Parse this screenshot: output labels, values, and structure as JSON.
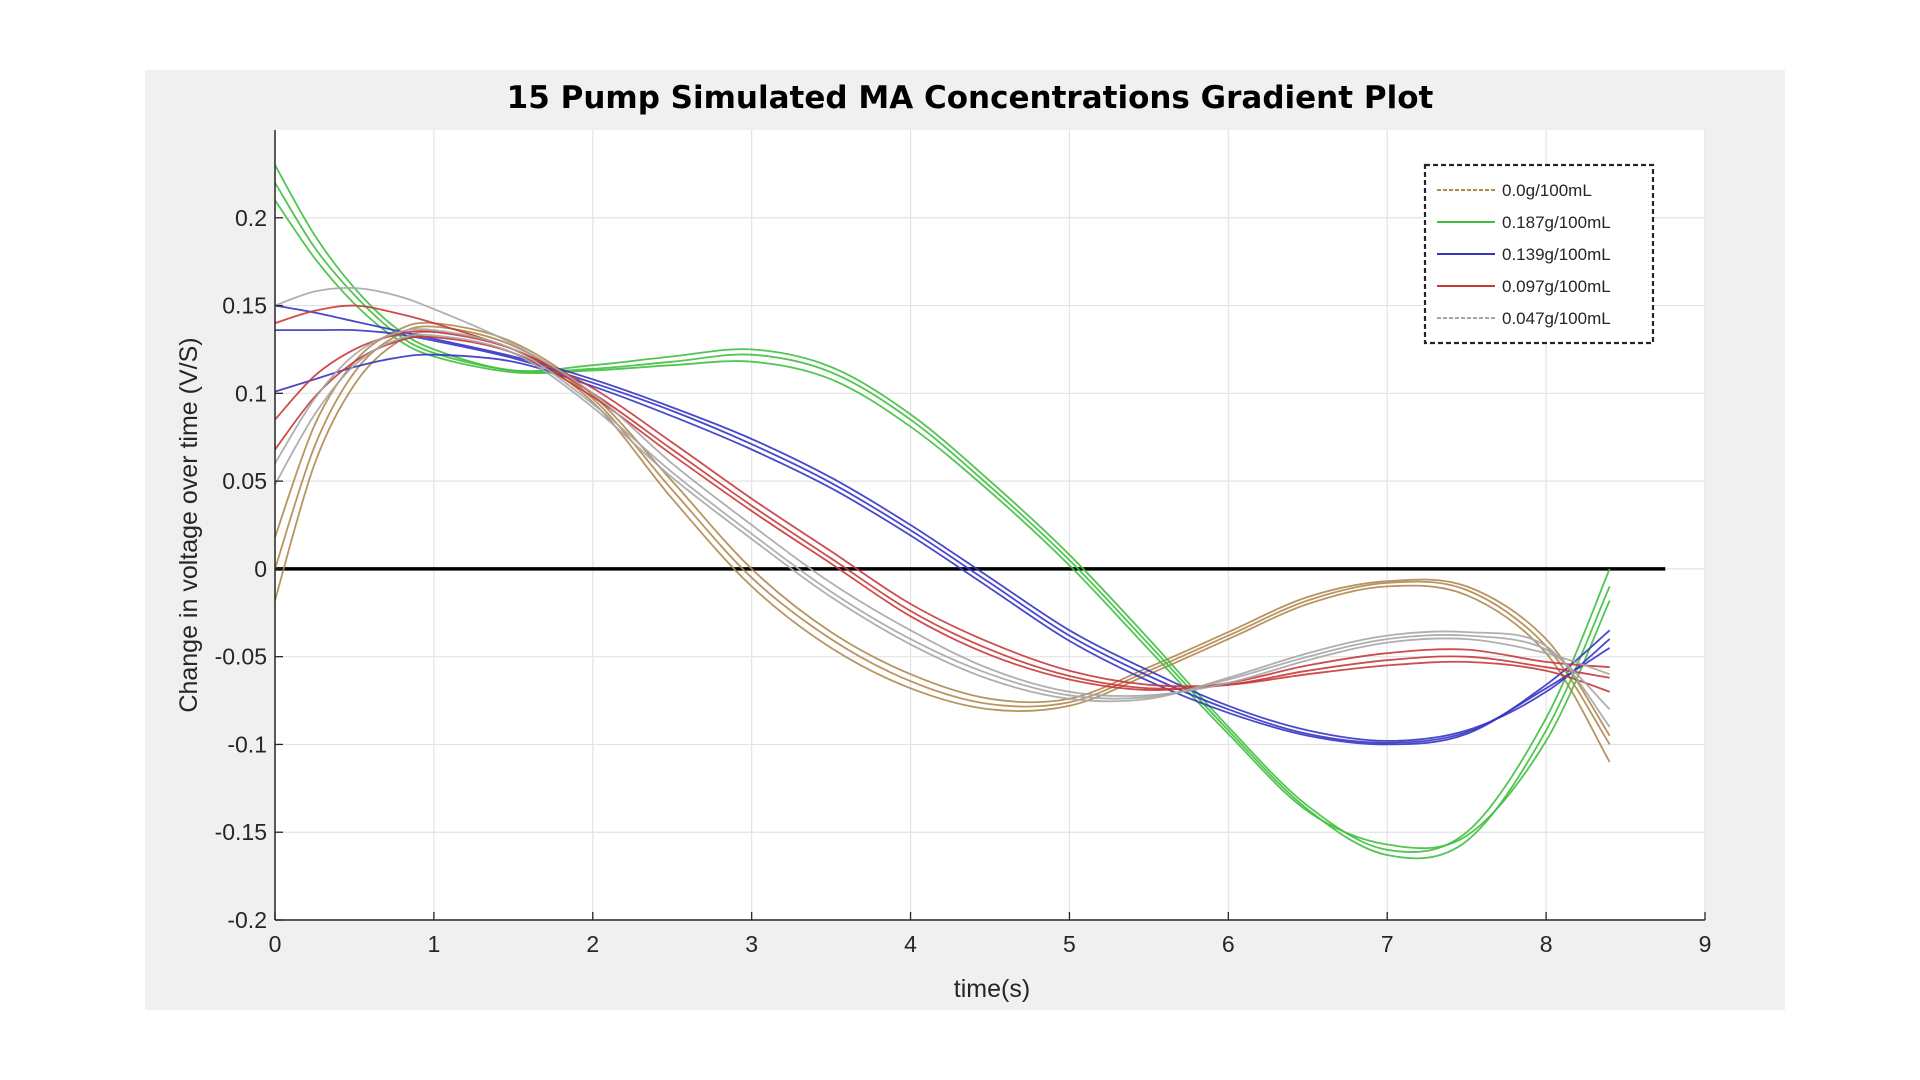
{
  "chart_data": {
    "type": "line",
    "title": "15 Pump Simulated MA Concentrations Gradient Plot",
    "xlabel": "time(s)",
    "ylabel": "Change in voltage over time (V/S)",
    "xlim": [
      0,
      9
    ],
    "ylim": [
      -0.2,
      0.25
    ],
    "x_ticks": [
      "0",
      "1",
      "2",
      "3",
      "4",
      "5",
      "6",
      "7",
      "8",
      "9"
    ],
    "y_ticks": [
      "-0.2",
      "-0.15",
      "-0.1",
      "-0.05",
      "0",
      "0.05",
      "0.1",
      "0.15",
      "0.2"
    ],
    "grid": true,
    "legend_position": "top-right",
    "reference_line": {
      "y": 0,
      "x_range": [
        0,
        8.75
      ],
      "color": "#000000"
    },
    "series": [
      {
        "name": "0.0g/100mL",
        "color": "#b08850",
        "style": "dashed",
        "x": [
          0,
          0.25,
          0.5,
          0.75,
          1,
          1.5,
          2,
          2.5,
          3,
          3.5,
          4,
          4.5,
          5,
          5.5,
          6,
          6.5,
          7,
          7.5,
          8,
          8.4
        ],
        "curves": [
          [
            -0.018,
            0.06,
            0.105,
            0.128,
            0.135,
            0.125,
            0.095,
            0.04,
            -0.01,
            -0.045,
            -0.068,
            -0.08,
            -0.078,
            -0.06,
            -0.04,
            -0.02,
            -0.01,
            -0.015,
            -0.048,
            -0.11
          ],
          [
            0.0,
            0.07,
            0.112,
            0.132,
            0.138,
            0.127,
            0.097,
            0.045,
            -0.005,
            -0.04,
            -0.064,
            -0.077,
            -0.076,
            -0.058,
            -0.038,
            -0.018,
            -0.008,
            -0.012,
            -0.044,
            -0.1
          ],
          [
            0.018,
            0.082,
            0.118,
            0.135,
            0.14,
            0.129,
            0.099,
            0.05,
            0.0,
            -0.036,
            -0.06,
            -0.074,
            -0.074,
            -0.056,
            -0.036,
            -0.016,
            -0.007,
            -0.01,
            -0.04,
            -0.095
          ]
        ]
      },
      {
        "name": "0.187g/100mL",
        "color": "#3fbf3f",
        "style": "solid",
        "x": [
          0,
          0.25,
          0.5,
          0.75,
          1,
          1.5,
          2,
          2.5,
          3,
          3.5,
          4,
          4.5,
          5,
          5.5,
          6,
          6.5,
          7,
          7.5,
          8,
          8.4
        ],
        "curves": [
          [
            0.23,
            0.19,
            0.16,
            0.138,
            0.125,
            0.113,
            0.116,
            0.121,
            0.125,
            0.115,
            0.088,
            0.05,
            0.008,
            -0.04,
            -0.09,
            -0.135,
            -0.16,
            -0.15,
            -0.085,
            0.0
          ],
          [
            0.22,
            0.183,
            0.156,
            0.135,
            0.123,
            0.113,
            0.114,
            0.118,
            0.122,
            0.112,
            0.085,
            0.047,
            0.005,
            -0.043,
            -0.092,
            -0.137,
            -0.163,
            -0.155,
            -0.092,
            -0.01
          ],
          [
            0.21,
            0.177,
            0.151,
            0.132,
            0.121,
            0.112,
            0.113,
            0.116,
            0.118,
            0.108,
            0.081,
            0.044,
            0.002,
            -0.046,
            -0.094,
            -0.138,
            -0.157,
            -0.152,
            -0.098,
            -0.018
          ]
        ]
      },
      {
        "name": "0.139g/100mL",
        "color": "#3535c4",
        "style": "solid",
        "x": [
          0,
          0.25,
          0.5,
          0.75,
          1,
          1.5,
          2,
          2.5,
          3,
          3.5,
          4,
          4.5,
          5,
          5.5,
          6,
          6.5,
          7,
          7.5,
          8,
          8.4
        ],
        "curves": [
          [
            0.15,
            0.146,
            0.141,
            0.136,
            0.131,
            0.121,
            0.108,
            0.092,
            0.074,
            0.052,
            0.025,
            -0.005,
            -0.035,
            -0.058,
            -0.078,
            -0.092,
            -0.098,
            -0.092,
            -0.07,
            -0.04
          ],
          [
            0.136,
            0.136,
            0.136,
            0.134,
            0.13,
            0.12,
            0.106,
            0.09,
            0.071,
            0.049,
            0.022,
            -0.008,
            -0.038,
            -0.061,
            -0.08,
            -0.094,
            -0.099,
            -0.093,
            -0.068,
            -0.045
          ],
          [
            0.101,
            0.108,
            0.115,
            0.12,
            0.122,
            0.118,
            0.104,
            0.087,
            0.068,
            0.046,
            0.019,
            -0.011,
            -0.041,
            -0.064,
            -0.082,
            -0.095,
            -0.1,
            -0.094,
            -0.066,
            -0.035
          ]
        ]
      },
      {
        "name": "0.097g/100mL",
        "color": "#c83838",
        "style": "solid",
        "x": [
          0,
          0.25,
          0.5,
          0.75,
          1,
          1.5,
          2,
          2.5,
          3,
          3.5,
          4,
          4.5,
          5,
          5.5,
          6,
          6.5,
          7,
          7.5,
          8,
          8.4
        ],
        "curves": [
          [
            0.14,
            0.147,
            0.15,
            0.146,
            0.14,
            0.125,
            0.103,
            0.072,
            0.04,
            0.01,
            -0.02,
            -0.042,
            -0.058,
            -0.066,
            -0.066,
            -0.06,
            -0.055,
            -0.053,
            -0.058,
            -0.07
          ],
          [
            0.085,
            0.11,
            0.125,
            0.133,
            0.135,
            0.125,
            0.1,
            0.068,
            0.036,
            0.006,
            -0.024,
            -0.046,
            -0.061,
            -0.068,
            -0.066,
            -0.058,
            -0.052,
            -0.05,
            -0.056,
            -0.062
          ],
          [
            0.068,
            0.098,
            0.118,
            0.129,
            0.132,
            0.123,
            0.098,
            0.065,
            0.033,
            0.003,
            -0.027,
            -0.049,
            -0.063,
            -0.069,
            -0.065,
            -0.055,
            -0.048,
            -0.046,
            -0.053,
            -0.056
          ]
        ]
      },
      {
        "name": "0.047g/100mL",
        "color": "#a6a6a6",
        "style": "dashed",
        "x": [
          0,
          0.25,
          0.5,
          0.75,
          1,
          1.5,
          2,
          2.5,
          3,
          3.5,
          4,
          4.5,
          5,
          5.5,
          6,
          6.5,
          7,
          7.5,
          8,
          8.4
        ],
        "curves": [
          [
            0.15,
            0.158,
            0.16,
            0.156,
            0.148,
            0.128,
            0.1,
            0.06,
            0.025,
            -0.008,
            -0.035,
            -0.057,
            -0.07,
            -0.072,
            -0.065,
            -0.052,
            -0.042,
            -0.04,
            -0.048,
            -0.06
          ],
          [
            0.06,
            0.097,
            0.122,
            0.134,
            0.136,
            0.125,
            0.094,
            0.055,
            0.02,
            -0.013,
            -0.04,
            -0.06,
            -0.072,
            -0.073,
            -0.063,
            -0.05,
            -0.04,
            -0.038,
            -0.046,
            -0.08
          ],
          [
            0.048,
            0.088,
            0.116,
            0.13,
            0.133,
            0.123,
            0.092,
            0.052,
            0.017,
            -0.016,
            -0.043,
            -0.063,
            -0.074,
            -0.074,
            -0.062,
            -0.048,
            -0.038,
            -0.036,
            -0.044,
            -0.09
          ]
        ]
      }
    ]
  }
}
